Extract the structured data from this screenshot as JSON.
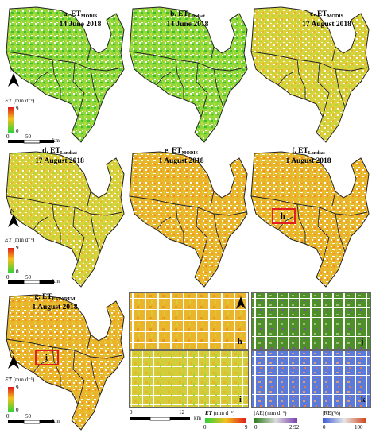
{
  "panels": [
    {
      "id": "a",
      "letter": "a. ET",
      "sub": "MODIS",
      "date": "14 June 2018",
      "style": "green"
    },
    {
      "id": "b",
      "letter": "b. ET",
      "sub": "Landsat",
      "date": "14 June 2018",
      "style": "green"
    },
    {
      "id": "c",
      "letter": "c. ET",
      "sub": "MODIS",
      "date": "17 August 2018",
      "style": "yellow"
    },
    {
      "id": "d",
      "letter": "d. ET",
      "sub": "Landsat",
      "date": "17 August 2018",
      "style": "yellow"
    },
    {
      "id": "e",
      "letter": "e. ET",
      "sub": "MODIS",
      "date": "1 August 2018",
      "style": "orange"
    },
    {
      "id": "f",
      "letter": "f. ET",
      "sub": "Landsat",
      "date": "1 August 2018",
      "style": "orange"
    },
    {
      "id": "g",
      "letter": "g. ET",
      "sub": "ESTARFM",
      "date": "1 August 2018",
      "style": "orange"
    }
  ],
  "legend": {
    "north": "N",
    "et_label": "ET",
    "et_unit": "(mm d⁻¹)",
    "max": "9",
    "min": "0",
    "scale_0": "0",
    "scale_50": "50",
    "scale_unit": "km"
  },
  "boxes": {
    "h": "h",
    "i": "i"
  },
  "insets": {
    "h": "h",
    "i": "i",
    "j": "j",
    "k": "k"
  },
  "bottom_legend": {
    "scale_0": "0",
    "scale_12": "12",
    "scale_unit": "km",
    "et_label": "ET",
    "et_unit": "(mm d⁻¹)",
    "et_min": "0",
    "et_max": "9",
    "ae_label": "|AE| (mm d⁻¹)",
    "ae_min": "0",
    "ae_max": "2.92",
    "re_label": "|RE|(%)",
    "re_min": "0",
    "re_max": "100"
  },
  "colors": {
    "green": "#7fd23a",
    "yellow": "#d8cc3a",
    "orange": "#e6b226",
    "boundary": "#222222",
    "ae_green": "#4f8f2a",
    "re_blue": "#5d7ad8",
    "highlight": "#e02020"
  }
}
